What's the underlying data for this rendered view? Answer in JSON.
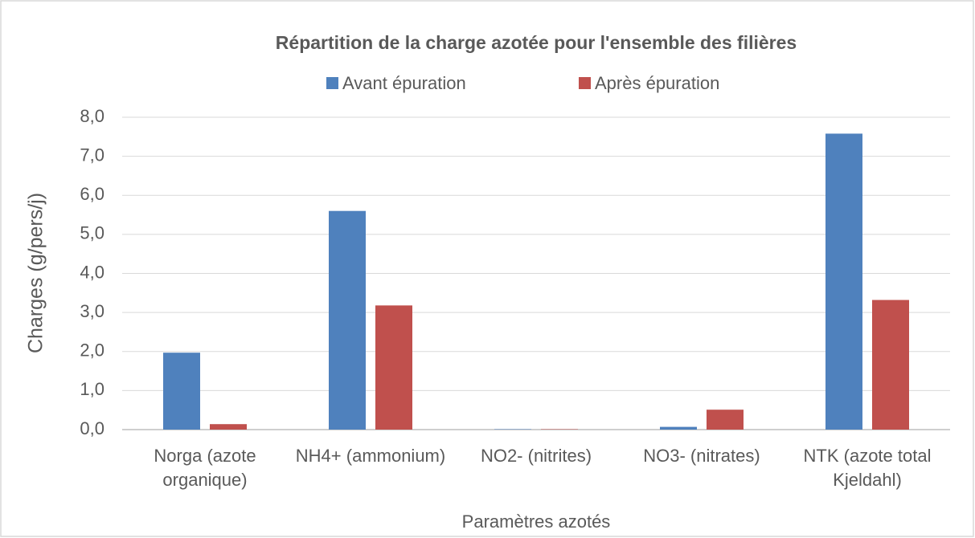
{
  "chart_data": {
    "type": "bar",
    "title": "Répartition de la charge azotée pour l'ensemble des filières",
    "x_label": "Paramètres azotés",
    "y_label": "Charges (g/pers/j)",
    "categories": [
      "Norga (azote organique)",
      "NH4+ (ammonium)",
      "NO2- (nitrites)",
      "NO3- (nitrates)",
      "NTK (azote total Kjeldahl)"
    ],
    "series": [
      {
        "name": "Avant épuration",
        "color": "#4f81bd",
        "values": [
          1.97,
          5.6,
          0.01,
          0.07,
          7.58
        ]
      },
      {
        "name": "Après épuration",
        "color": "#c0504d",
        "values": [
          0.14,
          3.18,
          0.01,
          0.51,
          3.32
        ]
      }
    ],
    "ylim": [
      0,
      8
    ],
    "yticks": [
      {
        "value": 0,
        "label": "0,0"
      },
      {
        "value": 1,
        "label": "1,0"
      },
      {
        "value": 2,
        "label": "2,0"
      },
      {
        "value": 3,
        "label": "3,0"
      },
      {
        "value": 4,
        "label": "4,0"
      },
      {
        "value": 5,
        "label": "5,0"
      },
      {
        "value": 6,
        "label": "6,0"
      },
      {
        "value": 7,
        "label": "7,0"
      },
      {
        "value": 8,
        "label": "8,0"
      }
    ],
    "grid": true,
    "legend": "top"
  }
}
